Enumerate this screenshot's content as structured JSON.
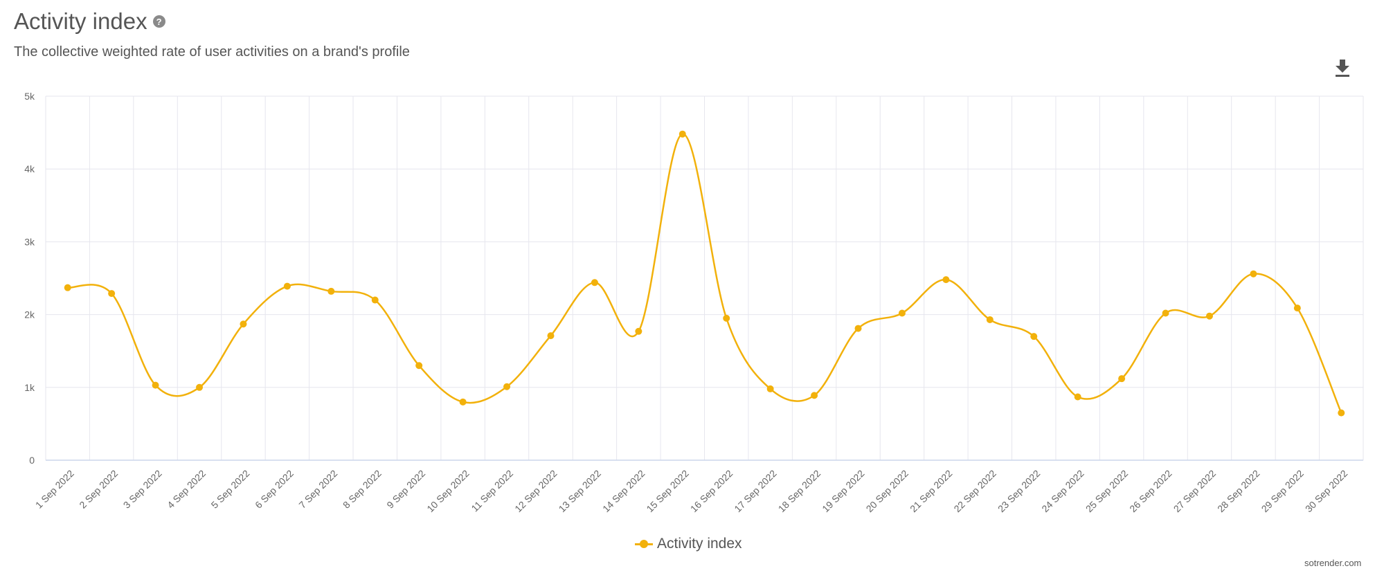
{
  "header": {
    "title": "Activity index",
    "help_icon": "question-circle-icon",
    "subtitle": "The collective weighted rate of user activities on a brand's profile",
    "download_icon": "download-icon"
  },
  "credit": "sotrender.com",
  "colors": {
    "series": "#F2B10B",
    "grid": "#E6E6EE",
    "axis_text": "#666666"
  },
  "chart_data": {
    "type": "line",
    "title": "Activity index",
    "subtitle": "The collective weighted rate of user activities on a brand's profile",
    "xlabel": "",
    "ylabel": "",
    "ylim": [
      0,
      5000
    ],
    "y_ticks": [
      "0",
      "1k",
      "2k",
      "3k",
      "4k",
      "5k"
    ],
    "y_tick_values": [
      0,
      1000,
      2000,
      3000,
      4000,
      5000
    ],
    "grid": true,
    "legend_position": "bottom-center",
    "categories": [
      "1 Sep 2022",
      "2 Sep 2022",
      "3 Sep 2022",
      "4 Sep 2022",
      "5 Sep 2022",
      "6 Sep 2022",
      "7 Sep 2022",
      "8 Sep 2022",
      "9 Sep 2022",
      "10 Sep 2022",
      "11 Sep 2022",
      "12 Sep 2022",
      "13 Sep 2022",
      "14 Sep 2022",
      "15 Sep 2022",
      "16 Sep 2022",
      "17 Sep 2022",
      "18 Sep 2022",
      "19 Sep 2022",
      "20 Sep 2022",
      "21 Sep 2022",
      "22 Sep 2022",
      "23 Sep 2022",
      "24 Sep 2022",
      "25 Sep 2022",
      "26 Sep 2022",
      "27 Sep 2022",
      "28 Sep 2022",
      "29 Sep 2022",
      "30 Sep 2022"
    ],
    "series": [
      {
        "name": "Activity index",
        "values": [
          2370,
          2290,
          1030,
          1000,
          1870,
          2390,
          2320,
          2200,
          1300,
          800,
          1010,
          1710,
          2440,
          1770,
          4480,
          1950,
          980,
          890,
          1810,
          2020,
          2480,
          1930,
          1700,
          870,
          1120,
          2020,
          1980,
          2560,
          2090,
          650
        ]
      }
    ]
  }
}
